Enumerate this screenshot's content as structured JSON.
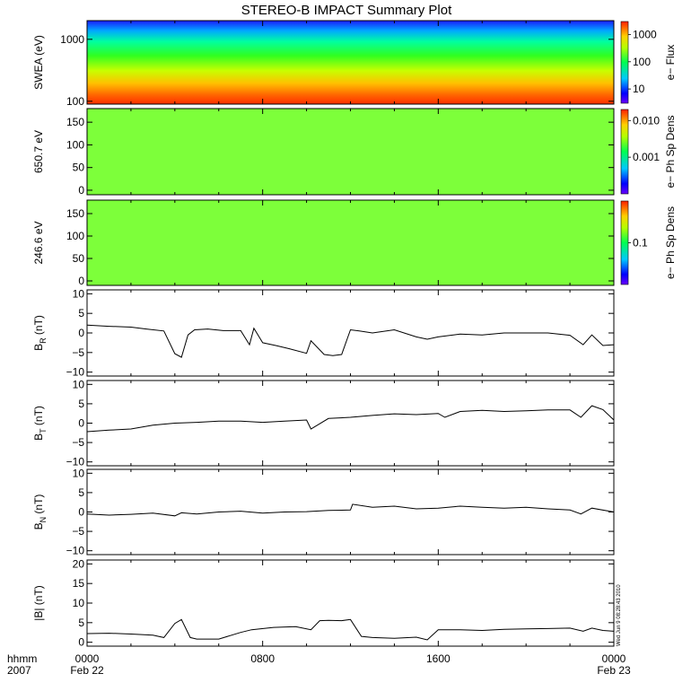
{
  "title": "STEREO-B IMPACT Summary Plot",
  "time_axis": {
    "hhmm_label": "hhmm",
    "year_label": "2007",
    "ticks": [
      {
        "hours": 0,
        "label": "0000",
        "date": "Feb 22"
      },
      {
        "hours": 8,
        "label": "0800",
        "date": ""
      },
      {
        "hours": 16,
        "label": "1600",
        "date": ""
      },
      {
        "hours": 24,
        "label": "0000",
        "date": "Feb 23"
      }
    ]
  },
  "timestamp": "Wed Jun 9 08:28:43 2010",
  "colors": {
    "trace": "#000000",
    "spectrogram_fill": "#7dff3a"
  },
  "chart_data": [
    {
      "type": "heatmap",
      "name": "swea",
      "ylabel": "SWEA (eV)",
      "yscale": "log",
      "ylim": [
        90,
        2000
      ],
      "yticks": [
        {
          "v": 100,
          "label": "100"
        },
        {
          "v": 1000,
          "label": "1000"
        }
      ],
      "colorbar": {
        "label": "e− Flux",
        "scale": "log",
        "range": [
          3,
          3000
        ],
        "ticks": [
          {
            "v": 10,
            "label": "10"
          },
          {
            "v": 100,
            "label": "100"
          },
          {
            "v": 1000,
            "label": "1000"
          }
        ]
      }
    },
    {
      "type": "heatmap",
      "name": "pad650",
      "ylabel": "650.7 eV",
      "yscale": "linear",
      "ylim": [
        -10,
        180
      ],
      "yticks": [
        {
          "v": 0,
          "label": "0"
        },
        {
          "v": 50,
          "label": "50"
        },
        {
          "v": 100,
          "label": "100"
        },
        {
          "v": 150,
          "label": "150"
        }
      ],
      "colorbar": {
        "label": "e− Ph Sp Dens",
        "scale": "log",
        "range": [
          0.0001,
          0.02
        ],
        "ticks": [
          {
            "v": 0.001,
            "label": "0.001"
          },
          {
            "v": 0.01,
            "label": "0.010"
          }
        ]
      }
    },
    {
      "type": "heatmap",
      "name": "pad246",
      "ylabel": "246.6 eV",
      "yscale": "linear",
      "ylim": [
        -10,
        180
      ],
      "yticks": [
        {
          "v": 0,
          "label": "0"
        },
        {
          "v": 50,
          "label": "50"
        },
        {
          "v": 100,
          "label": "100"
        },
        {
          "v": 150,
          "label": "150"
        }
      ],
      "colorbar": {
        "label": "e− Ph Sp Dens",
        "scale": "log",
        "range": [
          0.02,
          0.5
        ],
        "ticks": [
          {
            "v": 0.1,
            "label": "0.1"
          }
        ]
      }
    },
    {
      "type": "line",
      "name": "br",
      "ylabel_main": "B",
      "ylabel_sub": "R",
      "ylabel_unit": " (nT)",
      "ylim": [
        -11,
        11
      ],
      "yticks": [
        {
          "v": -10,
          "label": "−10"
        },
        {
          "v": -5,
          "label": "−5"
        },
        {
          "v": 0,
          "label": "0"
        },
        {
          "v": 5,
          "label": "5"
        },
        {
          "v": 10,
          "label": "10"
        }
      ],
      "x": [
        0,
        1,
        2,
        2.7,
        3.5,
        4.0,
        4.3,
        4.6,
        4.9,
        5.5,
        6.2,
        7.0,
        7.4,
        7.6,
        8.0,
        8.6,
        9.2,
        10.0,
        10.2,
        10.8,
        11.2,
        11.6,
        12.0,
        12.4,
        13.0,
        14.0,
        15.0,
        15.5,
        16.0,
        17.0,
        18.0,
        19.0,
        20.0,
        21.0,
        22.0,
        22.6,
        23.0,
        23.5,
        24.0
      ],
      "y": [
        2,
        1.7,
        1.5,
        1.0,
        0.5,
        -5.3,
        -6.2,
        -0.5,
        0.8,
        1.0,
        0.6,
        0.6,
        -3,
        1.2,
        -2.5,
        -3.2,
        -4,
        -5.2,
        -2,
        -5.5,
        -5.8,
        -5.5,
        0.8,
        0.5,
        0,
        0.8,
        -1,
        -1.6,
        -1,
        -0.3,
        -0.5,
        0,
        0,
        0,
        -0.6,
        -3,
        -0.5,
        -3.2,
        -3
      ]
    },
    {
      "type": "line",
      "name": "bt",
      "ylabel_main": "B",
      "ylabel_sub": "T",
      "ylabel_unit": " (nT)",
      "ylim": [
        -11,
        11
      ],
      "yticks": [
        {
          "v": -10,
          "label": "−10"
        },
        {
          "v": -5,
          "label": "−5"
        },
        {
          "v": 0,
          "label": "0"
        },
        {
          "v": 5,
          "label": "5"
        },
        {
          "v": 10,
          "label": "10"
        }
      ],
      "x": [
        0,
        1,
        2,
        3,
        4,
        5,
        6,
        7,
        8,
        9,
        10,
        10.2,
        11,
        12,
        13,
        14,
        15,
        16,
        16.3,
        17,
        18,
        19,
        20,
        21,
        22,
        22.5,
        23,
        23.5,
        24
      ],
      "y": [
        -2.2,
        -1.8,
        -1.5,
        -0.5,
        0,
        0.2,
        0.5,
        0.5,
        0.2,
        0.5,
        0.8,
        -1.5,
        1.2,
        1.5,
        2,
        2.4,
        2.2,
        2.5,
        1.5,
        3,
        3.3,
        3,
        3.2,
        3.4,
        3.4,
        1.5,
        4.5,
        3.5,
        0.8
      ]
    },
    {
      "type": "line",
      "name": "bn",
      "ylabel_main": "B",
      "ylabel_sub": "N",
      "ylabel_unit": " (nT)",
      "ylim": [
        -11,
        11
      ],
      "yticks": [
        {
          "v": -10,
          "label": "−10"
        },
        {
          "v": -5,
          "label": "−5"
        },
        {
          "v": 0,
          "label": "0"
        },
        {
          "v": 5,
          "label": "5"
        },
        {
          "v": 10,
          "label": "10"
        }
      ],
      "x": [
        0,
        1,
        2,
        3,
        4,
        4.3,
        5,
        6,
        7,
        8,
        9,
        10,
        11,
        12,
        12.1,
        13,
        14,
        15,
        16,
        17,
        18,
        19,
        20,
        21,
        22,
        22.5,
        23,
        24
      ],
      "y": [
        -0.5,
        -0.8,
        -0.6,
        -0.3,
        -1.0,
        -0.2,
        -0.5,
        0,
        0.2,
        -0.3,
        0,
        0.1,
        0.4,
        0.5,
        2.0,
        1.2,
        1.5,
        0.8,
        1.0,
        1.5,
        1.2,
        1.0,
        1.2,
        0.8,
        0.5,
        -0.5,
        1.0,
        0
      ]
    },
    {
      "type": "line",
      "name": "bmag",
      "ylabel_main": "|B|",
      "ylabel_sub": "",
      "ylabel_unit": " (nT)",
      "ylim": [
        -1,
        21
      ],
      "yticks": [
        {
          "v": 0,
          "label": "0"
        },
        {
          "v": 5,
          "label": "5"
        },
        {
          "v": 10,
          "label": "10"
        },
        {
          "v": 15,
          "label": "15"
        },
        {
          "v": 20,
          "label": "20"
        }
      ],
      "x": [
        0,
        1,
        2,
        3,
        3.5,
        4.0,
        4.3,
        4.7,
        5.0,
        6.0,
        7.0,
        7.5,
        8.5,
        9.5,
        10.2,
        10.6,
        11.0,
        11.6,
        12.0,
        12.5,
        13.0,
        14.0,
        15.0,
        15.5,
        16.0,
        17.0,
        18.0,
        19.0,
        20.0,
        21.0,
        22.0,
        22.6,
        23.0,
        23.5,
        24.0
      ],
      "y": [
        2.2,
        2.3,
        2.1,
        1.8,
        1.2,
        4.8,
        5.8,
        1.2,
        0.8,
        0.8,
        2.5,
        3.2,
        3.8,
        4.0,
        3.2,
        5.5,
        5.6,
        5.5,
        5.8,
        1.5,
        1.2,
        1.0,
        1.3,
        0.6,
        3.2,
        3.2,
        3.0,
        3.3,
        3.4,
        3.5,
        3.6,
        2.8,
        3.6,
        3.0,
        2.8
      ]
    }
  ]
}
